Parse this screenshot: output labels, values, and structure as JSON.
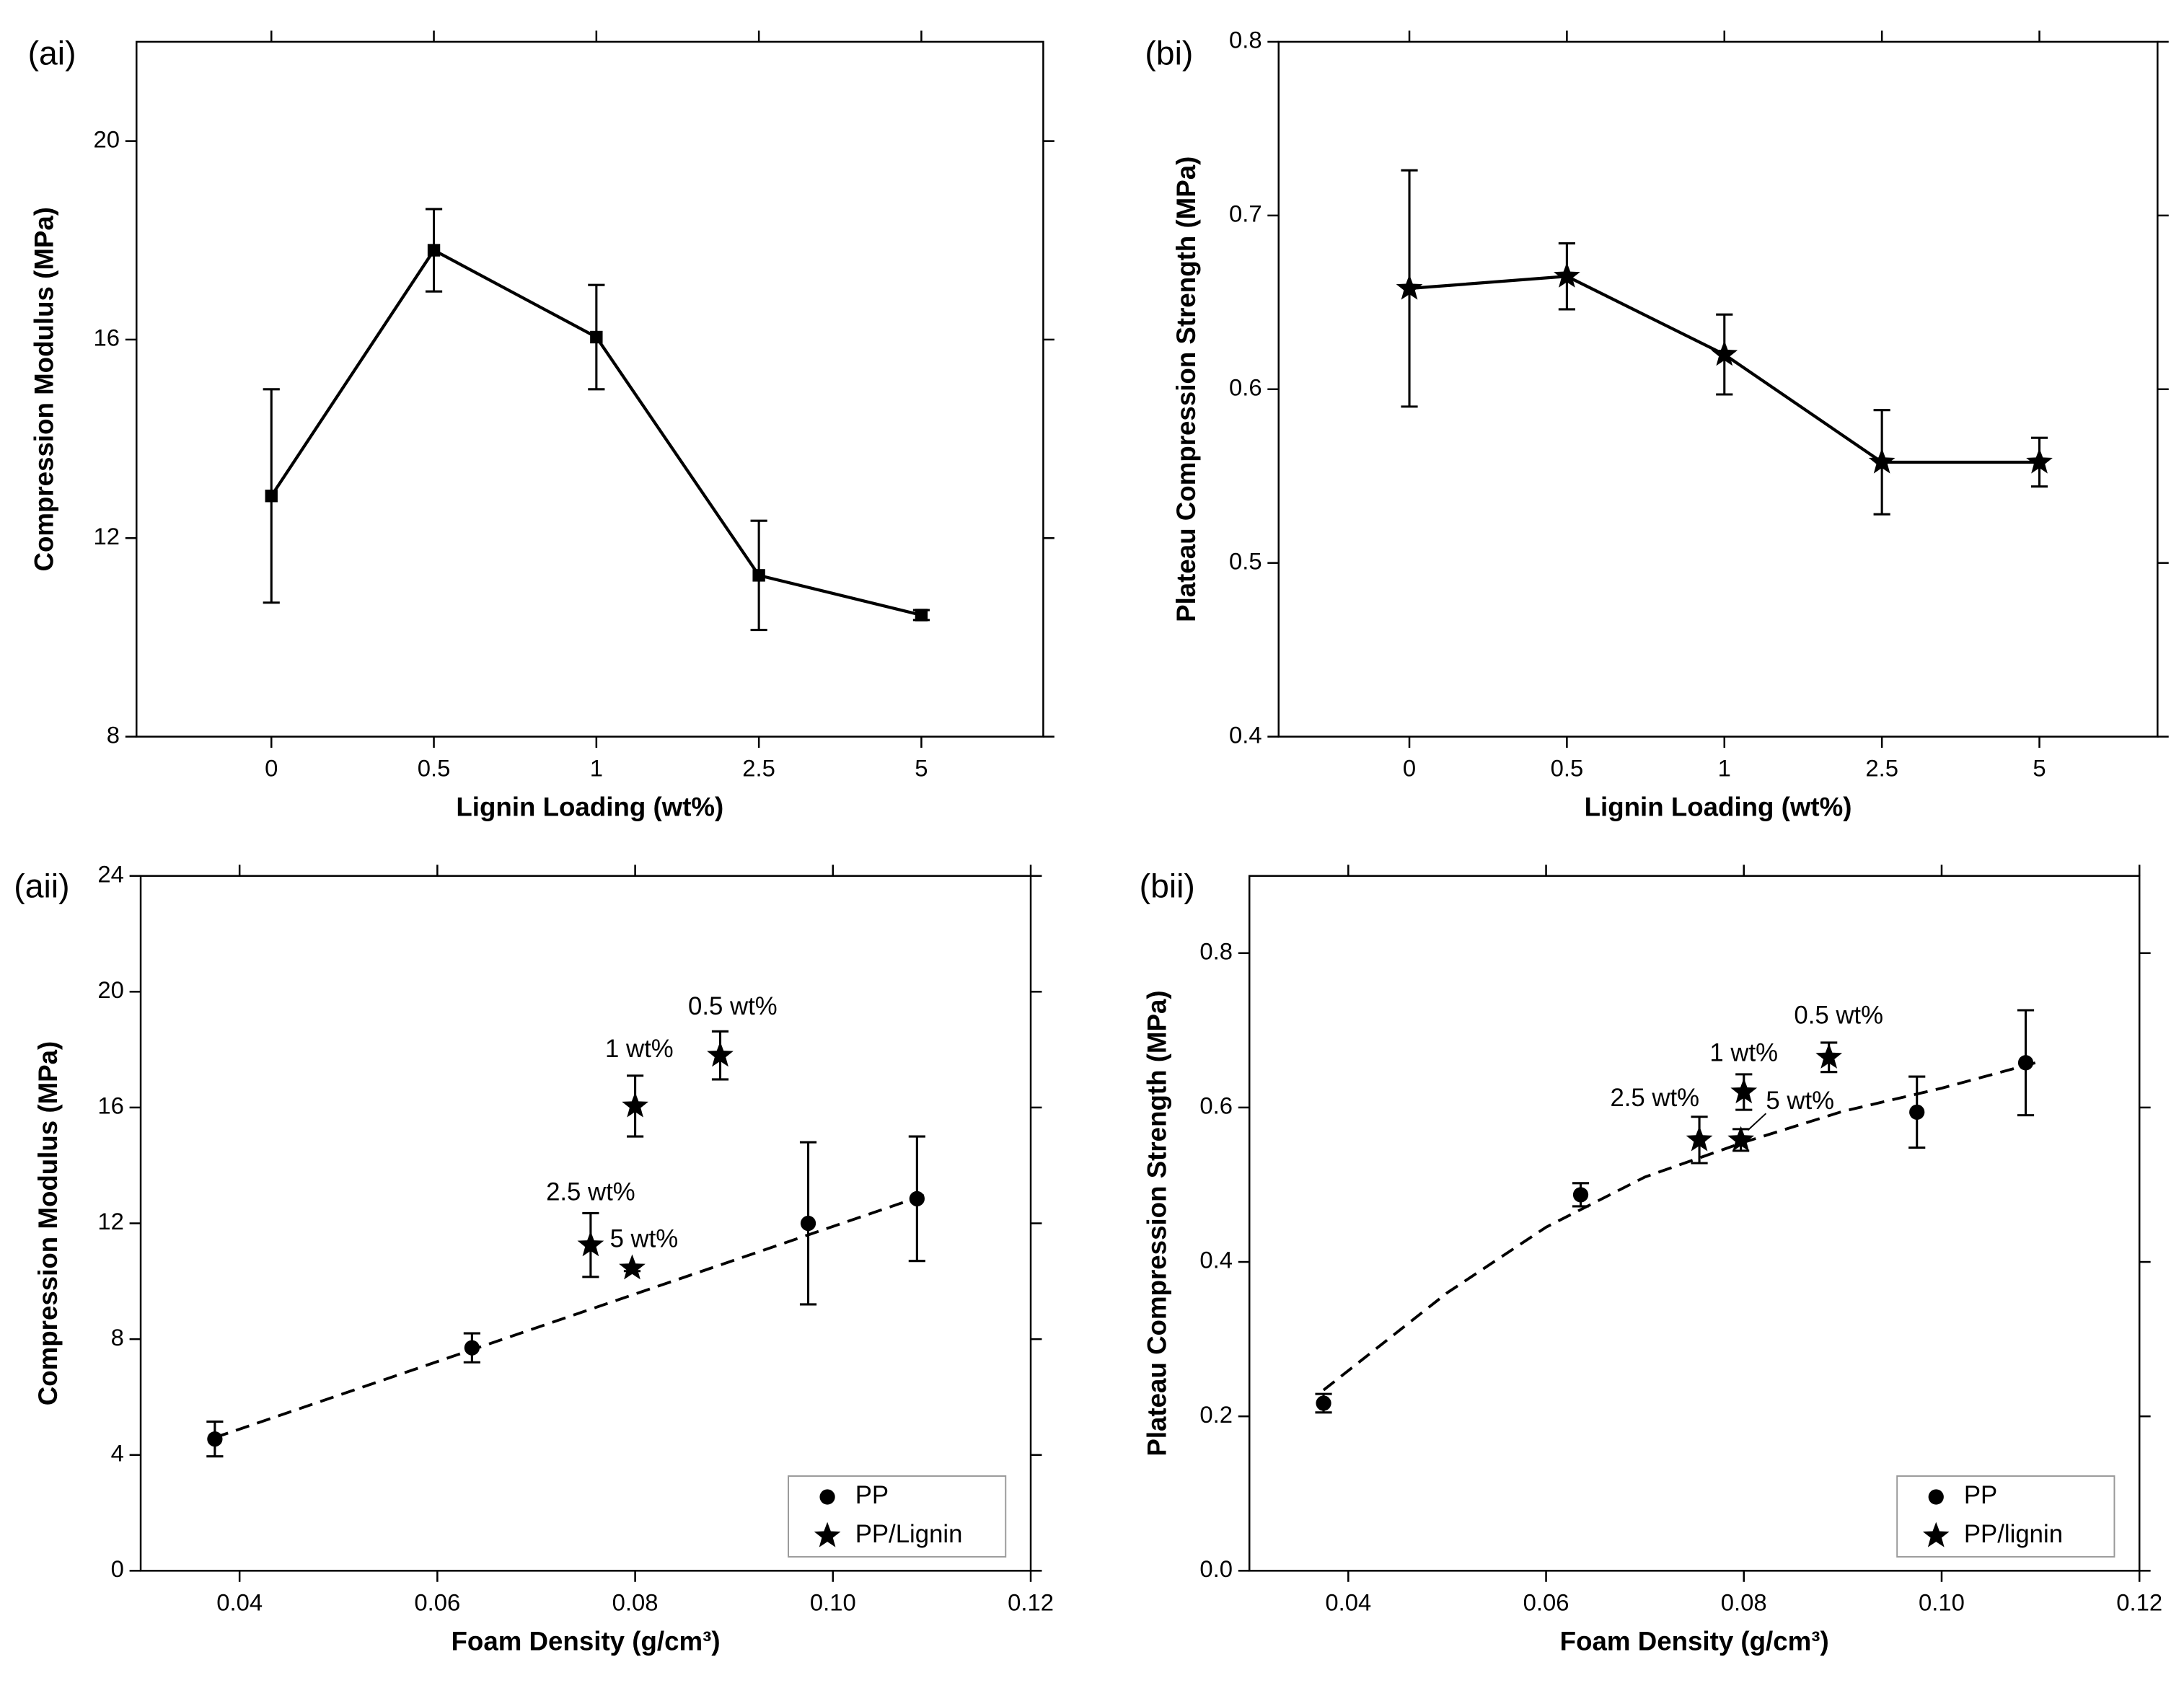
{
  "chart_data": [
    {
      "type": "line",
      "panel_label": "(ai)",
      "xlabel": "Lignin Loading (wt%)",
      "ylabel": "Compression Modulus (MPa)",
      "categories": [
        "0",
        "0.5",
        "1",
        "2.5",
        "5"
      ],
      "ylim": [
        8,
        22
      ],
      "yticks": [
        8,
        12,
        16,
        20
      ],
      "series": [
        {
          "color": "#000000",
          "marker": "square",
          "values": [
            12.85,
            17.8,
            16.05,
            11.25,
            10.45
          ],
          "errors": [
            2.15,
            0.83,
            1.05,
            1.1,
            0.1
          ]
        }
      ]
    },
    {
      "type": "line",
      "panel_label": "(bi)",
      "xlabel": "Lignin Loading (wt%)",
      "ylabel": "Plateau Compression Strength (MPa)",
      "categories": [
        "0",
        "0.5",
        "1",
        "2.5",
        "5"
      ],
      "ylim": [
        0.4,
        0.8
      ],
      "yticks": [
        0.4,
        0.5,
        0.6,
        0.7,
        0.8
      ],
      "series": [
        {
          "color": "#000000",
          "marker": "star",
          "values": [
            0.658,
            0.665,
            0.62,
            0.558,
            0.558
          ],
          "errors": [
            0.068,
            0.019,
            0.023,
            0.03,
            0.014
          ]
        }
      ]
    },
    {
      "type": "scatter",
      "panel_label": "(aii)",
      "xlabel": "Foam Density (g/cm³)",
      "ylabel": "Compression Modulus (MPa)",
      "xlim": [
        0.03,
        0.12
      ],
      "xticks": [
        0.04,
        0.06,
        0.08,
        {
          "value": 0.1,
          "label": "0.10"
        },
        0.12
      ],
      "ylim": [
        0,
        24
      ],
      "yticks": [
        0,
        4,
        8,
        12,
        16,
        20,
        24
      ],
      "legend": "lower right",
      "series": [
        {
          "name": "PP",
          "color": "#000000",
          "marker": "circle",
          "x": [
            0.0375,
            0.0635,
            0.0975,
            0.1085
          ],
          "values": [
            4.55,
            7.7,
            12.0,
            12.85
          ],
          "errors": [
            0.6,
            0.5,
            2.8,
            2.15
          ]
        },
        {
          "name": "PP/Lignin",
          "color": "#000000",
          "marker": "star",
          "x": [
            0.0886,
            0.08,
            0.0755,
            0.0797
          ],
          "values": [
            17.8,
            16.05,
            11.25,
            10.45
          ],
          "errors": [
            0.83,
            1.05,
            1.1,
            0.1
          ]
        }
      ],
      "annotations": [
        "0.5 wt%",
        "1 wt%",
        "2.5 wt%",
        "5 wt%"
      ],
      "fit": {
        "x": [
          0.0375,
          0.1095
        ],
        "values": [
          4.6,
          13.0
        ]
      }
    },
    {
      "type": "scatter",
      "panel_label": "(bii)",
      "xlabel": "Foam Density (g/cm³)",
      "ylabel": "Plateau Compression Strength (MPa)",
      "xlim": [
        0.03,
        0.12
      ],
      "xticks": [
        0.04,
        0.06,
        0.08,
        {
          "value": 0.1,
          "label": "0.10"
        },
        0.12
      ],
      "ylim": [
        0,
        0.9
      ],
      "yticks": [
        {
          "value": 0,
          "label": "0.0"
        },
        0.2,
        0.4,
        0.6,
        0.8
      ],
      "legend": "lower right",
      "series": [
        {
          "name": "PP",
          "color": "#000000",
          "marker": "circle",
          "x": [
            0.0375,
            0.0635,
            0.0975,
            0.1085
          ],
          "values": [
            0.217,
            0.487,
            0.594,
            0.658
          ],
          "errors": [
            0.012,
            0.015,
            0.046,
            0.068
          ]
        },
        {
          "name": "PP/lignin",
          "color": "#000000",
          "marker": "star",
          "x": [
            0.0886,
            0.08,
            0.0755,
            0.0797
          ],
          "values": [
            0.665,
            0.62,
            0.558,
            0.558
          ],
          "errors": [
            0.019,
            0.023,
            0.03,
            0.014
          ]
        }
      ],
      "annotations": [
        "0.5 wt%",
        "1 wt%",
        "2.5 wt%",
        "5 wt%"
      ],
      "fit": {
        "x": [
          0.0375,
          0.05,
          0.06,
          0.07,
          0.08,
          0.09,
          0.1,
          0.1095
        ],
        "values": [
          0.234,
          0.36,
          0.445,
          0.51,
          0.555,
          0.595,
          0.625,
          0.658
        ]
      }
    }
  ]
}
